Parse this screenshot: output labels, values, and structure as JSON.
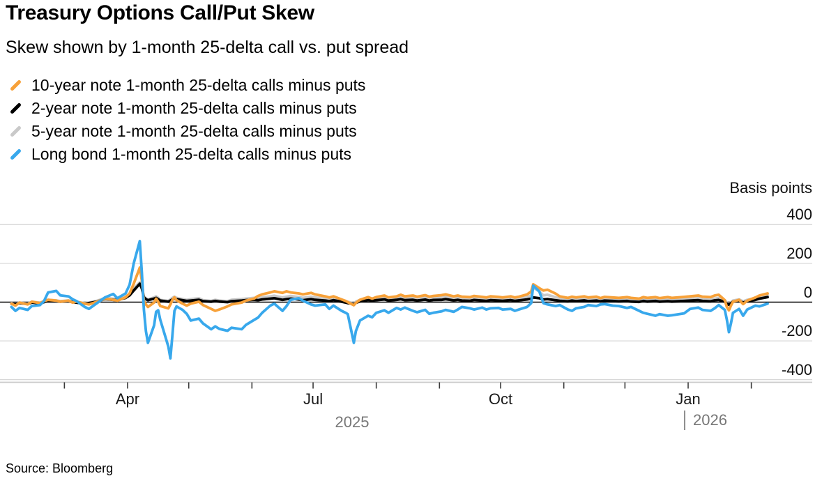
{
  "header": {
    "title": "Treasury Options Call/Put Skew",
    "subtitle": "Skew shown by 1-month 25-delta call vs. put spread"
  },
  "legend": {
    "items": [
      {
        "label": "10-year note 1-month 25-delta calls minus puts",
        "color": "#F7A139"
      },
      {
        "label": "2-year note 1-month 25-delta calls minus puts",
        "color": "#000000"
      },
      {
        "label": "5-year note 1-month 25-delta calls minus puts",
        "color": "#C9C9C9"
      },
      {
        "label": "Long bond 1-month 25-delta calls minus puts",
        "color": "#38A8EC"
      }
    ]
  },
  "axis": {
    "unit_label": "Basis points",
    "y_ticks": [
      {
        "value": 400,
        "label": "400"
      },
      {
        "value": 200,
        "label": "200"
      },
      {
        "value": 0,
        "label": "0"
      },
      {
        "value": -200,
        "label": "-200"
      },
      {
        "value": -400,
        "label": "-400"
      }
    ],
    "x_ticks": [
      {
        "date": "2025-03-01",
        "label": ""
      },
      {
        "date": "2025-04-01",
        "label": "Apr"
      },
      {
        "date": "2025-05-01",
        "label": ""
      },
      {
        "date": "2025-06-01",
        "label": ""
      },
      {
        "date": "2025-07-01",
        "label": "Jul"
      },
      {
        "date": "2025-08-01",
        "label": ""
      },
      {
        "date": "2025-09-01",
        "label": ""
      },
      {
        "date": "2025-10-01",
        "label": "Oct"
      },
      {
        "date": "2025-11-01",
        "label": ""
      },
      {
        "date": "2025-12-01",
        "label": ""
      },
      {
        "date": "2026-01-01",
        "label": "Jan"
      },
      {
        "date": "2026-02-01",
        "label": ""
      }
    ],
    "years": [
      "2025",
      "2026"
    ]
  },
  "source": "Source: Bloomberg",
  "colors": {
    "gridline": "#d8d8d8",
    "zero_line": "#000000",
    "x_axis_line": "#c9c9c9",
    "tick": "#3a3a3a",
    "year_text": "#777777"
  },
  "chart_data": {
    "type": "line",
    "y_unit": "basis points",
    "ylim": [
      -400,
      400
    ],
    "grid": "horizontal",
    "legend_position": "top-left",
    "x": [
      "2025-02-03",
      "2025-02-05",
      "2025-02-07",
      "2025-02-11",
      "2025-02-13",
      "2025-02-17",
      "2025-02-19",
      "2025-02-21",
      "2025-02-25",
      "2025-02-27",
      "2025-03-03",
      "2025-03-05",
      "2025-03-07",
      "2025-03-11",
      "2025-03-13",
      "2025-03-17",
      "2025-03-19",
      "2025-03-21",
      "2025-03-25",
      "2025-03-27",
      "2025-03-31",
      "2025-04-02",
      "2025-04-04",
      "2025-04-07",
      "2025-04-08",
      "2025-04-09",
      "2025-04-10",
      "2025-04-11",
      "2025-04-14",
      "2025-04-15",
      "2025-04-16",
      "2025-04-17",
      "2025-04-21",
      "2025-04-22",
      "2025-04-23",
      "2025-04-24",
      "2025-04-25",
      "2025-04-28",
      "2025-04-30",
      "2025-05-02",
      "2025-05-06",
      "2025-05-08",
      "2025-05-12",
      "2025-05-14",
      "2025-05-16",
      "2025-05-20",
      "2025-05-22",
      "2025-05-27",
      "2025-05-29",
      "2025-06-02",
      "2025-06-04",
      "2025-06-06",
      "2025-06-10",
      "2025-06-12",
      "2025-06-16",
      "2025-06-18",
      "2025-06-20",
      "2025-06-24",
      "2025-06-26",
      "2025-06-30",
      "2025-07-02",
      "2025-07-07",
      "2025-07-09",
      "2025-07-11",
      "2025-07-15",
      "2025-07-17",
      "2025-07-18",
      "2025-07-21",
      "2025-07-22",
      "2025-07-24",
      "2025-07-28",
      "2025-07-30",
      "2025-08-01",
      "2025-08-05",
      "2025-08-07",
      "2025-08-11",
      "2025-08-13",
      "2025-08-15",
      "2025-08-19",
      "2025-08-21",
      "2025-08-25",
      "2025-08-27",
      "2025-08-29",
      "2025-09-02",
      "2025-09-04",
      "2025-09-08",
      "2025-09-10",
      "2025-09-12",
      "2025-09-16",
      "2025-09-18",
      "2025-09-22",
      "2025-09-24",
      "2025-09-26",
      "2025-09-30",
      "2025-10-02",
      "2025-10-06",
      "2025-10-08",
      "2025-10-10",
      "2025-10-14",
      "2025-10-16",
      "2025-10-17",
      "2025-10-20",
      "2025-10-22",
      "2025-10-24",
      "2025-10-28",
      "2025-10-30",
      "2025-11-03",
      "2025-11-05",
      "2025-11-07",
      "2025-11-11",
      "2025-11-13",
      "2025-11-17",
      "2025-11-19",
      "2025-11-21",
      "2025-11-25",
      "2025-11-28",
      "2025-12-02",
      "2025-12-04",
      "2025-12-08",
      "2025-12-10",
      "2025-12-12",
      "2025-12-16",
      "2025-12-18",
      "2025-12-22",
      "2025-12-24",
      "2025-12-30",
      "2026-01-02",
      "2026-01-06",
      "2026-01-08",
      "2026-01-12",
      "2026-01-14",
      "2026-01-16",
      "2026-01-19",
      "2026-01-20",
      "2026-01-21",
      "2026-01-22",
      "2026-01-23",
      "2026-01-26",
      "2026-01-28",
      "2026-01-30",
      "2026-02-03",
      "2026-02-05",
      "2026-02-09"
    ],
    "series": [
      {
        "name": "10-year note 1-month 25-delta calls minus puts",
        "color": "#F7A139",
        "values": [
          -8,
          -18,
          -2,
          -12,
          2,
          -5,
          5,
          12,
          8,
          2,
          8,
          -2,
          3,
          -8,
          -12,
          2,
          10,
          18,
          12,
          8,
          25,
          45,
          95,
          178,
          110,
          5,
          -12,
          -25,
          -2,
          18,
          2,
          -20,
          -32,
          -12,
          12,
          25,
          10,
          -8,
          -18,
          -8,
          2,
          -15,
          -35,
          -45,
          -38,
          -22,
          -12,
          -2,
          8,
          18,
          32,
          40,
          50,
          56,
          48,
          56,
          50,
          45,
          40,
          48,
          40,
          30,
          24,
          30,
          14,
          6,
          0,
          -16,
          -4,
          12,
          26,
          18,
          26,
          34,
          24,
          30,
          38,
          30,
          34,
          28,
          36,
          28,
          32,
          36,
          40,
          30,
          34,
          28,
          26,
          32,
          27,
          24,
          30,
          27,
          24,
          30,
          24,
          28,
          40,
          55,
          92,
          72,
          60,
          64,
          44,
          30,
          22,
          28,
          24,
          30,
          24,
          28,
          21,
          27,
          24,
          22,
          26,
          22,
          18,
          26,
          22,
          26,
          21,
          26,
          22,
          27,
          30,
          34,
          28,
          26,
          34,
          38,
          10,
          -25,
          -42,
          -18,
          2,
          12,
          -10,
          8,
          24,
          34,
          45
        ]
      },
      {
        "name": "2-year note 1-month 25-delta calls minus puts",
        "color": "#000000",
        "values": [
          -8,
          -12,
          -5,
          -10,
          -2,
          -6,
          0,
          8,
          5,
          2,
          5,
          0,
          -3,
          -8,
          -5,
          3,
          10,
          16,
          12,
          10,
          22,
          35,
          60,
          95,
          70,
          25,
          15,
          10,
          18,
          22,
          15,
          8,
          2,
          8,
          14,
          18,
          15,
          10,
          6,
          8,
          12,
          5,
          2,
          6,
          3,
          0,
          5,
          8,
          10,
          12,
          10,
          14,
          18,
          20,
          12,
          15,
          18,
          14,
          10,
          15,
          12,
          8,
          5,
          10,
          2,
          -2,
          -5,
          -10,
          -4,
          4,
          10,
          8,
          10,
          14,
          8,
          12,
          15,
          10,
          12,
          8,
          13,
          8,
          11,
          12,
          15,
          9,
          12,
          8,
          7,
          11,
          8,
          6,
          10,
          8,
          7,
          10,
          6,
          9,
          14,
          18,
          24,
          20,
          14,
          16,
          10,
          7,
          4,
          8,
          5,
          9,
          5,
          8,
          4,
          8,
          6,
          4,
          6,
          3,
          1,
          6,
          3,
          6,
          2,
          5,
          3,
          6,
          8,
          10,
          6,
          4,
          9,
          11,
          2,
          -8,
          -14,
          -6,
          2,
          6,
          -2,
          4,
          12,
          18,
          26
        ]
      },
      {
        "name": "5-year note 1-month 25-delta calls minus puts",
        "color": "#C9C9C9",
        "values": [
          -5,
          -10,
          -2,
          -8,
          2,
          -2,
          4,
          12,
          9,
          5,
          9,
          4,
          1,
          -5,
          -2,
          7,
          14,
          22,
          18,
          15,
          28,
          42,
          70,
          102,
          75,
          30,
          20,
          14,
          24,
          30,
          22,
          12,
          6,
          14,
          22,
          28,
          22,
          16,
          12,
          15,
          20,
          10,
          6,
          12,
          8,
          5,
          12,
          16,
          18,
          22,
          20,
          25,
          30,
          33,
          24,
          28,
          32,
          26,
          22,
          28,
          24,
          18,
          14,
          20,
          10,
          5,
          2,
          -6,
          2,
          12,
          20,
          16,
          20,
          26,
          16,
          22,
          28,
          22,
          25,
          18,
          26,
          18,
          22,
          24,
          28,
          20,
          24,
          18,
          16,
          22,
          18,
          14,
          20,
          17,
          15,
          20,
          14,
          18,
          26,
          35,
          75,
          55,
          35,
          38,
          25,
          18,
          12,
          18,
          14,
          20,
          14,
          18,
          12,
          17,
          14,
          12,
          15,
          10,
          7,
          14,
          10,
          14,
          8,
          13,
          10,
          14,
          17,
          20,
          14,
          12,
          18,
          22,
          10,
          -2,
          -12,
          -2,
          8,
          14,
          4,
          12,
          20,
          27,
          36
        ]
      },
      {
        "name": "Long bond 1-month 25-delta calls minus puts",
        "color": "#38A8EC",
        "values": [
          -25,
          -45,
          -30,
          -40,
          -20,
          -15,
          5,
          50,
          58,
          35,
          30,
          15,
          5,
          -25,
          -35,
          -5,
          10,
          25,
          42,
          20,
          45,
          90,
          200,
          315,
          150,
          -40,
          -150,
          -210,
          -120,
          -50,
          -42,
          -90,
          -230,
          -290,
          -170,
          -45,
          -22,
          -40,
          -60,
          -95,
          -85,
          -110,
          -140,
          -125,
          -138,
          -148,
          -132,
          -140,
          -118,
          -92,
          -80,
          -55,
          -18,
          -8,
          -45,
          -20,
          12,
          20,
          8,
          -12,
          -18,
          -12,
          -35,
          -18,
          -45,
          -55,
          -62,
          -210,
          -150,
          -95,
          -70,
          -78,
          -55,
          -42,
          -55,
          -30,
          -38,
          -28,
          -45,
          -52,
          -40,
          -60,
          -55,
          -48,
          -40,
          -50,
          -38,
          -25,
          -32,
          -38,
          -28,
          -38,
          -32,
          -30,
          -38,
          -35,
          -45,
          -38,
          -25,
          -5,
          85,
          55,
          -5,
          -12,
          -20,
          -15,
          -38,
          -45,
          -32,
          -25,
          -15,
          -20,
          -12,
          -10,
          -18,
          -20,
          -30,
          -25,
          -45,
          -55,
          -60,
          -70,
          -62,
          -70,
          -68,
          -58,
          -35,
          -28,
          -40,
          -45,
          -32,
          -15,
          -40,
          -90,
          -155,
          -110,
          -55,
          -35,
          -70,
          -38,
          -18,
          -22,
          -8
        ]
      }
    ]
  }
}
